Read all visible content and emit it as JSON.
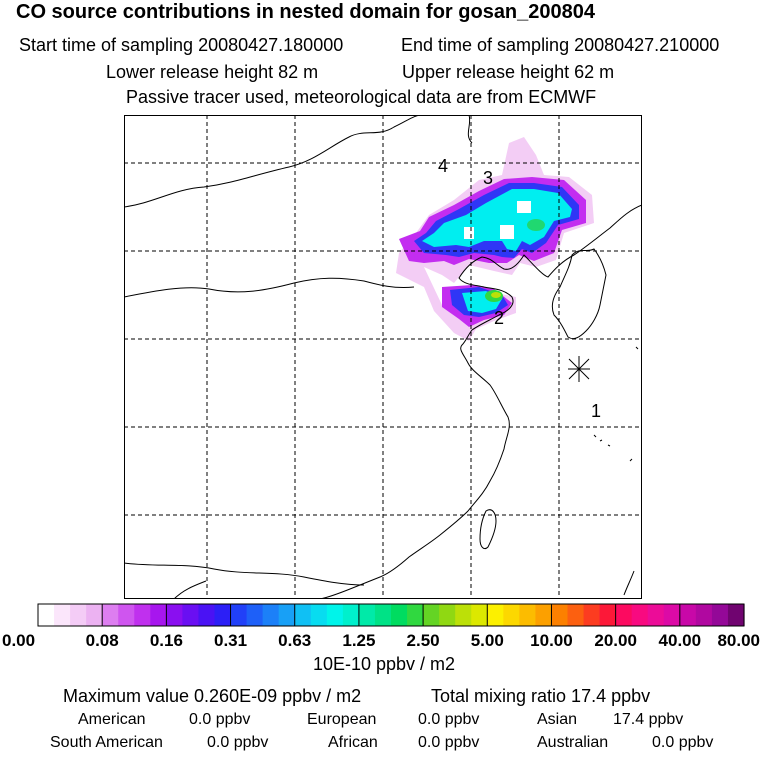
{
  "header": {
    "title": "CO  source contributions in nested domain for gosan_200804",
    "start_label": "Start time of sampling 20080427.180000",
    "end_label": "End time of sampling 20080427.210000",
    "lower_label": "Lower release height   82 m",
    "upper_label": "Upper release height   62 m",
    "tracer_note": "Passive tracer used, meteorological data are from ECMWF"
  },
  "map": {
    "region_labels": [
      "1",
      "2",
      "3",
      "4"
    ],
    "station_marker": "receptor-star"
  },
  "colorbar": {
    "tick_labels": [
      "0.00",
      "0.08",
      "0.16",
      "0.31",
      "0.63",
      "1.25",
      "2.50",
      "5.00",
      "10.00",
      "20.00",
      "40.00",
      "80.00"
    ],
    "unit": "10E-10 ppbv / m2",
    "colors": [
      "#ffffff",
      "#fbe6fb",
      "#f4ccf6",
      "#ecb2f2",
      "#dd7ef0",
      "#cf55ef",
      "#c030ee",
      "#a716ee",
      "#8a0ff0",
      "#6a0ff2",
      "#4a12f4",
      "#2c1ff6",
      "#2140f8",
      "#1e60f8",
      "#1c80f8",
      "#18a0f6",
      "#10c0f4",
      "#08dcf0",
      "#00f4ea",
      "#00f0cc",
      "#00eaa8",
      "#00e286",
      "#00dc60",
      "#30d840",
      "#64d424",
      "#90d812",
      "#bce008",
      "#dce800",
      "#fcf000",
      "#fcd800",
      "#fcbc00",
      "#fca000",
      "#fc8000",
      "#fc6010",
      "#fc3c20",
      "#fc1838",
      "#fc0a60",
      "#f80a80",
      "#ec0c98",
      "#dc0aa6",
      "#c808a8",
      "#b008a0",
      "#940898",
      "#700470"
    ]
  },
  "stats": {
    "max_label": "Maximum value  0.260E-09 ppbv / m2",
    "total_label": "Total mixing ratio       17.4 ppbv",
    "american_label": "American",
    "american_value": "0.0 ppbv",
    "european_label": "European",
    "european_value": "0.0 ppbv",
    "asian_label": "Asian",
    "asian_value": "17.4 ppbv",
    "south_american_label": "South American",
    "south_american_value": "0.0 ppbv",
    "african_label": "African",
    "african_value": "0.0 ppbv",
    "australian_label": "Australian",
    "australian_value": "0.0 ppbv"
  }
}
